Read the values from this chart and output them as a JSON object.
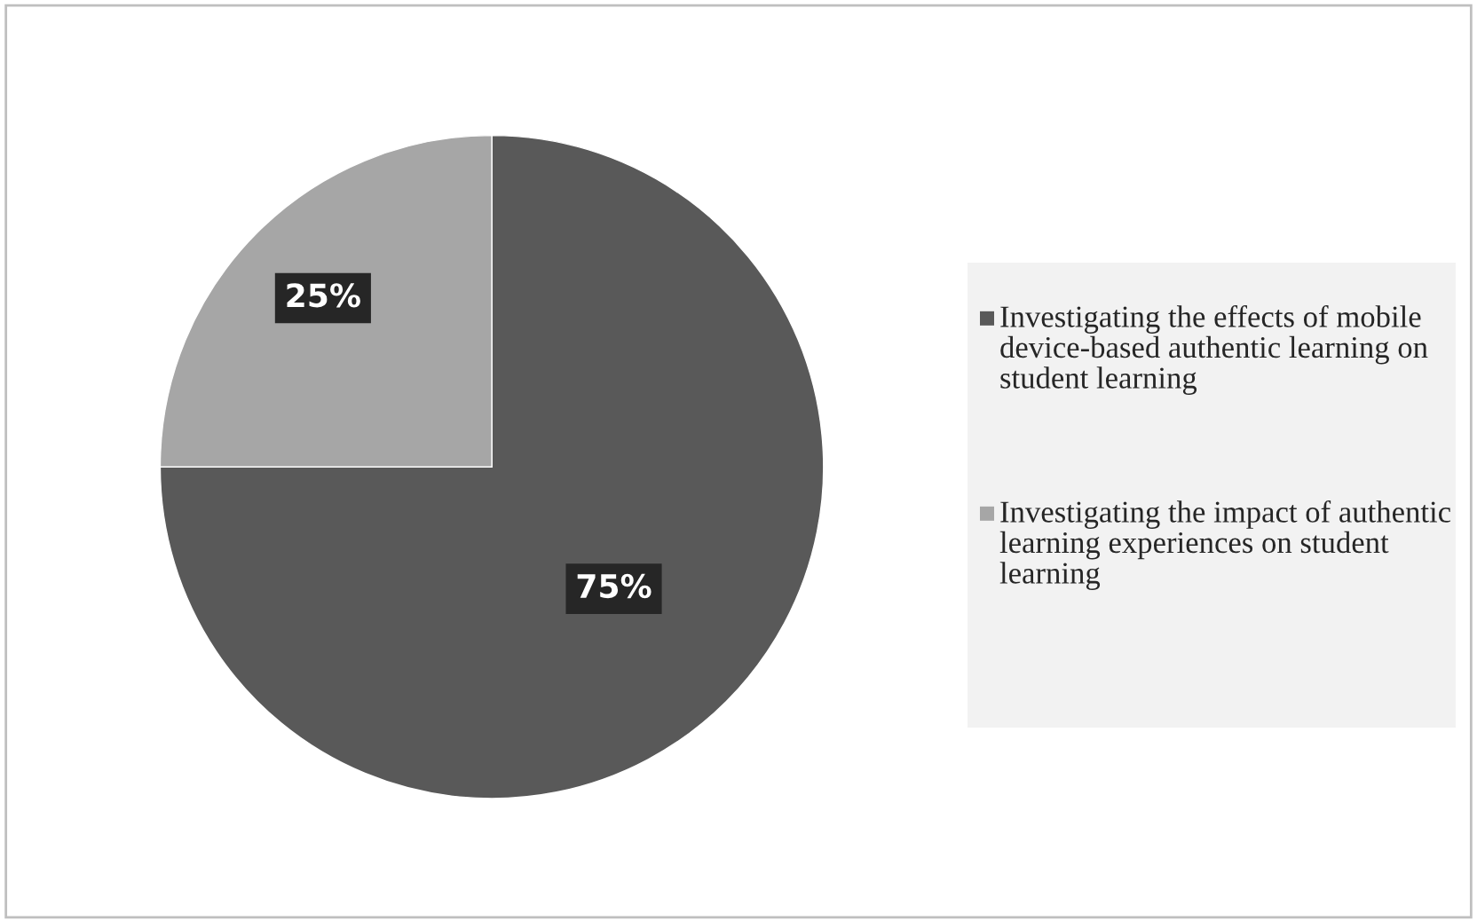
{
  "chart_data": {
    "type": "pie",
    "categories": [
      "Investigating the effects of mobile device-based authentic learning on student learning",
      "Investigating the impact of authentic learning experiences on student learning"
    ],
    "values": [
      75,
      25
    ],
    "colors": [
      "#595959",
      "#a6a6a6"
    ],
    "value_labels": [
      "75%",
      "25%"
    ],
    "legend": "right"
  }
}
